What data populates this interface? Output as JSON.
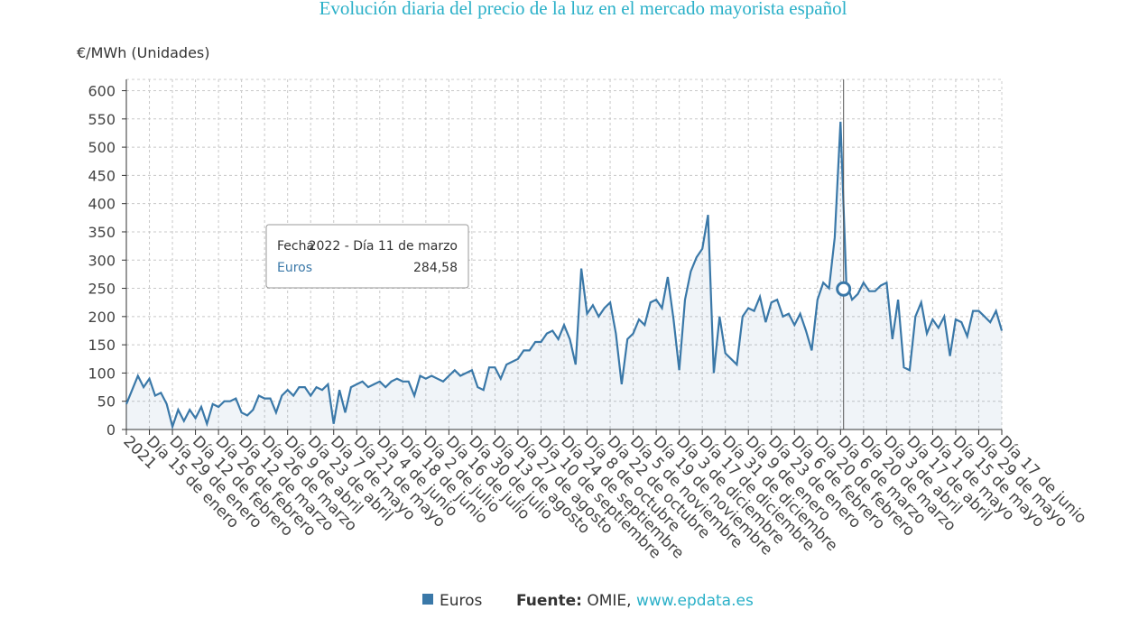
{
  "chart_data": {
    "type": "line",
    "title": "Evolución diaria del precio de la luz en el mercado mayorista español",
    "y_label": "€/MWh (Unidades)",
    "categories": [
      "2021",
      null,
      null,
      null,
      "Día 15 de enero",
      null,
      null,
      null,
      "Día 29 de enero",
      null,
      null,
      null,
      "Día 12 de febrero",
      null,
      null,
      null,
      "Día 26 de febrero",
      null,
      null,
      null,
      "Día 12 de marzo",
      null,
      null,
      null,
      "Día 26 de marzo",
      null,
      null,
      null,
      "Día 9 de abril",
      null,
      null,
      null,
      "Día 23 de abril",
      null,
      null,
      null,
      "Día 7 de mayo",
      null,
      null,
      null,
      "Día 21 de mayo",
      null,
      null,
      null,
      "Día 4 de junio",
      null,
      null,
      null,
      "Día 18 de junio",
      null,
      null,
      null,
      "Día 2 de julio",
      null,
      null,
      null,
      "Día 16 de julio",
      null,
      null,
      null,
      "Día 30 de julio",
      null,
      null,
      null,
      "Día 13 de agosto",
      null,
      null,
      null,
      "Día 27 de agosto",
      null,
      null,
      null,
      "Día 10 de septiembre",
      null,
      null,
      null,
      "Día 24 de septiembre",
      null,
      null,
      null,
      "Día 8 de octubre",
      null,
      null,
      null,
      "Día 22 de octubre",
      null,
      null,
      null,
      "Día 5 de noviembre",
      null,
      null,
      null,
      "Día 19 de noviembre",
      null,
      null,
      null,
      "Día 3 de diciembre",
      null,
      null,
      null,
      "Día 17 de diciembre",
      null,
      null,
      null,
      "Día 31 de diciembre",
      null,
      null,
      null,
      "Día 9 de enero",
      null,
      null,
      null,
      "Día 23 de enero",
      null,
      null,
      null,
      "Día 6 de febrero",
      null,
      null,
      null,
      "Día 20 de febrero",
      null,
      null,
      null,
      "Día 6 de marzo",
      null,
      null,
      null,
      "Día 20 de marzo",
      null,
      null,
      null,
      "Día 3 de abril",
      null,
      null,
      null,
      "Día 17 de abril",
      null,
      null,
      null,
      "Día 1 de mayo",
      null,
      null,
      null,
      "Día 15 de mayo",
      null,
      null,
      null,
      "Día 29 de mayo",
      null,
      null,
      null,
      "Día 17 de junio"
    ],
    "series": [
      {
        "name": "Euros",
        "color": "#3a78a8",
        "values": [
          45,
          70,
          95,
          75,
          90,
          60,
          65,
          45,
          5,
          35,
          15,
          35,
          20,
          40,
          10,
          45,
          40,
          50,
          50,
          55,
          30,
          25,
          35,
          60,
          55,
          55,
          30,
          60,
          70,
          60,
          75,
          75,
          60,
          75,
          70,
          80,
          10,
          70,
          30,
          75,
          80,
          85,
          75,
          80,
          85,
          75,
          85,
          90,
          85,
          85,
          60,
          95,
          90,
          95,
          90,
          85,
          95,
          105,
          95,
          100,
          105,
          75,
          70,
          110,
          110,
          90,
          115,
          120,
          125,
          140,
          140,
          155,
          155,
          170,
          175,
          160,
          185,
          160,
          115,
          285,
          205,
          220,
          200,
          215,
          225,
          170,
          80,
          160,
          170,
          195,
          185,
          225,
          230,
          215,
          270,
          195,
          105,
          230,
          280,
          305,
          320,
          380,
          100,
          200,
          135,
          125,
          115,
          200,
          215,
          210,
          235,
          190,
          225,
          230,
          200,
          205,
          185,
          205,
          175,
          140,
          230,
          260,
          250,
          340,
          545,
          260,
          230,
          240,
          260,
          245,
          245,
          255,
          260,
          160,
          230,
          110,
          105,
          200,
          225,
          170,
          195,
          180,
          200,
          130,
          195,
          190,
          165,
          210,
          210,
          200,
          190,
          210,
          175
        ]
      }
    ],
    "ylim": [
      0,
      620
    ],
    "yticks": [
      0,
      50,
      100,
      150,
      200,
      250,
      300,
      350,
      400,
      450,
      500,
      550,
      600
    ],
    "grid": true,
    "tooltip": {
      "field": "Fecha",
      "date": "2022 - Día 11 de marzo",
      "series": "Euros",
      "value": "284,58"
    },
    "source": {
      "label": "Fuente:",
      "name": "OMIE,",
      "url": "www.epdata.es"
    }
  }
}
